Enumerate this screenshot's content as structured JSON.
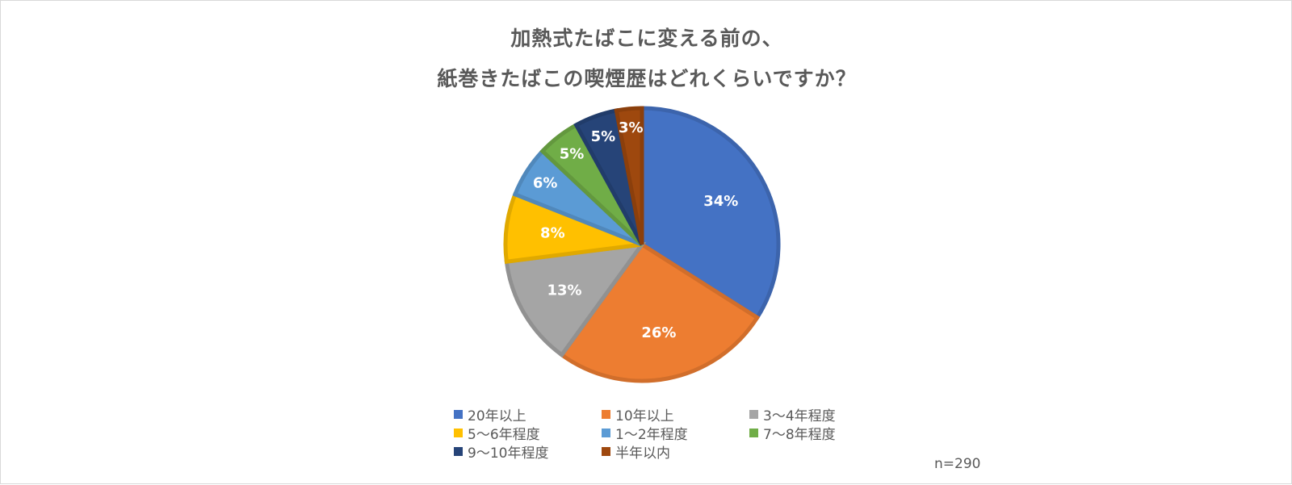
{
  "chart_data": {
    "type": "pie",
    "title": [
      "加熱式たばこに変える前の、",
      "紙巻きたばこの喫煙歴はどれくらいですか？"
    ],
    "categories": [
      "20年以上",
      "10年以上",
      "3～4年程度",
      "5～6年程度",
      "1～2年程度",
      "7～8年程度",
      "9～10年程度",
      "半年以内"
    ],
    "values": [
      34,
      26,
      13,
      8,
      6,
      5,
      5,
      3
    ],
    "value_labels": [
      "34%",
      "26%",
      "13%",
      "8%",
      "6%",
      "5%",
      "5%",
      "3%"
    ],
    "colors": [
      "#4472C4",
      "#ED7D31",
      "#A5A5A5",
      "#FFC000",
      "#5B9BD5",
      "#70AD47",
      "#264478",
      "#9E480E"
    ],
    "unit": "%",
    "legend_position": "bottom",
    "note": "n=290"
  }
}
